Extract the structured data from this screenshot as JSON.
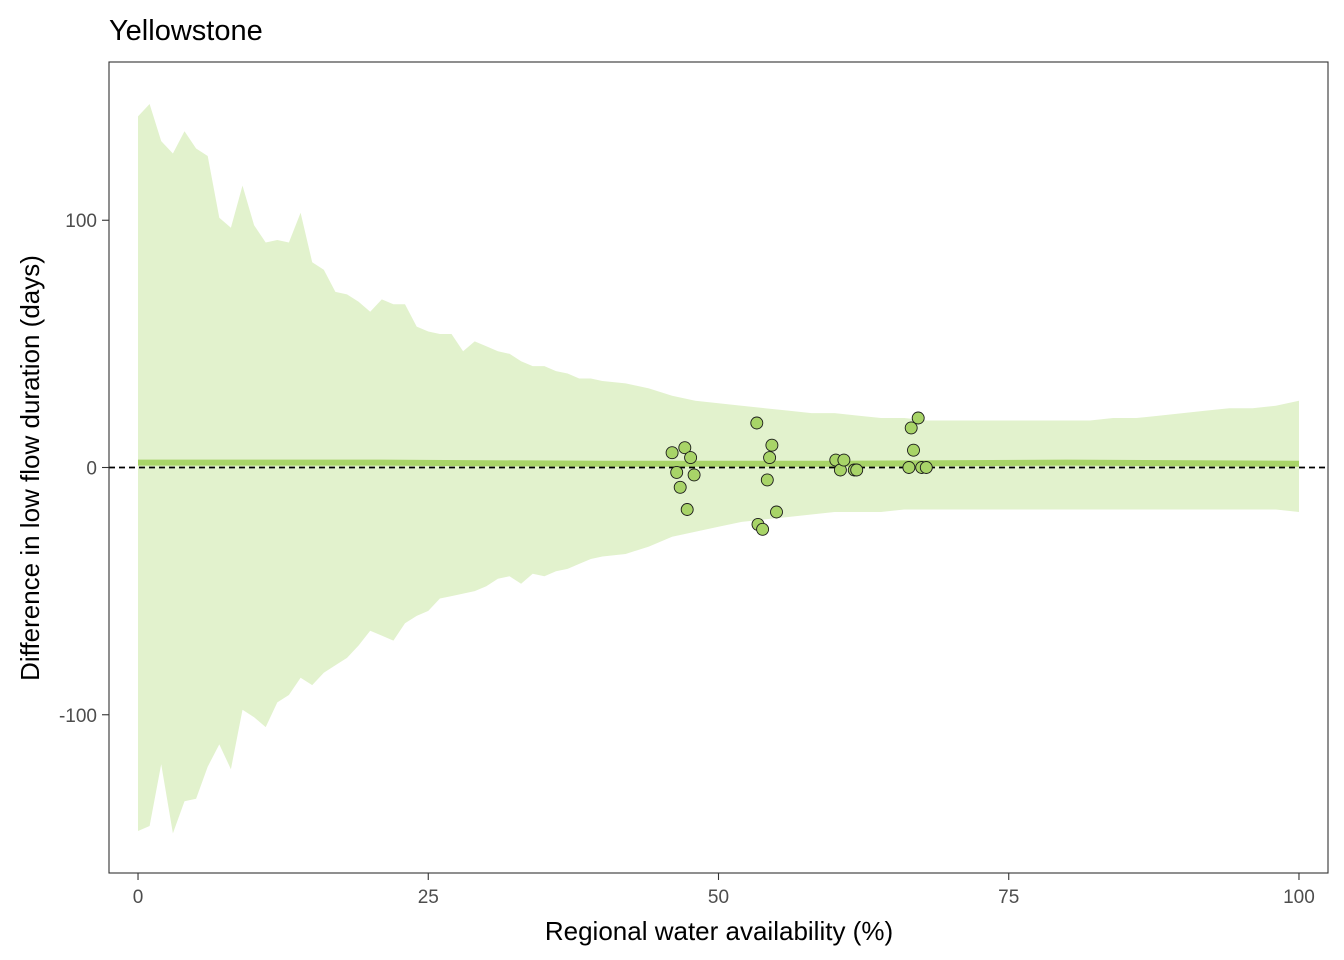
{
  "chart_data": {
    "type": "scatter",
    "title": "Yellowstone",
    "xlabel": "Regional water availability (%)",
    "ylabel": "Difference in low flow duration (days)",
    "xlim": [
      -2.5,
      102.5
    ],
    "ylim": [
      -164,
      164
    ],
    "xticks": [
      0,
      25,
      50,
      75,
      100
    ],
    "xtick_labels": [
      "0",
      "25",
      "50",
      "75",
      "100"
    ],
    "yticks": [
      -100,
      0,
      100
    ],
    "ytick_labels": [
      "-100",
      "0",
      "100"
    ],
    "grid": false,
    "reference_line": {
      "y": 0,
      "style": "dashed",
      "color": "#000000"
    },
    "colors": {
      "band": "#e2f2cd",
      "trend": "#a8d468",
      "points": "#a8d468",
      "point_outline": "#1a1a1a"
    },
    "band": {
      "x": [
        0,
        1,
        2,
        3,
        4,
        5,
        6,
        7,
        8,
        9,
        10,
        11,
        12,
        13,
        14,
        15,
        16,
        17,
        18,
        19,
        20,
        21,
        22,
        23,
        24,
        25,
        26,
        27,
        28,
        29,
        30,
        31,
        32,
        33,
        34,
        35,
        36,
        37,
        38,
        39,
        40,
        42,
        44,
        46,
        48,
        50,
        52,
        54,
        56,
        58,
        60,
        62,
        64,
        66,
        68,
        70,
        72,
        74,
        76,
        78,
        80,
        82,
        84,
        86,
        88,
        90,
        92,
        94,
        96,
        98,
        100
      ],
      "upper": [
        142,
        147,
        132,
        127,
        136,
        129,
        126,
        101,
        97,
        114,
        98,
        91,
        92,
        91,
        103,
        83,
        80,
        71,
        70,
        67,
        63,
        68,
        66,
        66,
        57,
        55,
        54,
        54,
        47,
        51,
        49,
        47,
        46,
        43,
        41,
        41,
        39,
        38,
        36,
        36,
        35,
        34,
        32,
        29,
        27,
        26,
        25,
        24,
        23,
        22,
        22,
        21,
        20,
        20,
        19,
        19,
        19,
        19,
        19,
        19,
        19,
        19,
        20,
        20,
        21,
        22,
        23,
        24,
        24,
        25,
        27
      ],
      "lower": [
        -147,
        -145,
        -120,
        -148,
        -135,
        -134,
        -121,
        -112,
        -122,
        -98,
        -101,
        -105,
        -95,
        -92,
        -85,
        -88,
        -83,
        -80,
        -77,
        -72,
        -66,
        -68,
        -70,
        -63,
        -60,
        -58,
        -53,
        -52,
        -51,
        -50,
        -48,
        -45,
        -44,
        -47,
        -43,
        -44,
        -42,
        -41,
        -39,
        -37,
        -36,
        -35,
        -32,
        -28,
        -26,
        -24,
        -22,
        -21,
        -20,
        -19,
        -18,
        -18,
        -18,
        -17,
        -17,
        -17,
        -17,
        -17,
        -17,
        -17,
        -17,
        -17,
        -17,
        -17,
        -17,
        -17,
        -17,
        -17,
        -17,
        -17,
        -18
      ]
    },
    "trend": {
      "x": [
        0,
        20,
        40,
        60,
        80,
        100
      ],
      "y": [
        2,
        2,
        1.5,
        1.5,
        2,
        1.5
      ]
    },
    "points": {
      "x": [
        46.0,
        46.4,
        46.7,
        47.1,
        47.3,
        47.6,
        47.9,
        53.3,
        53.4,
        53.8,
        54.2,
        54.4,
        54.6,
        55.0,
        60.1,
        60.5,
        60.8,
        61.7,
        61.9,
        66.4,
        66.6,
        66.8,
        67.2,
        67.5,
        67.9
      ],
      "y": [
        6,
        -2,
        -8,
        8,
        -17,
        4,
        -3,
        18,
        -23,
        -25,
        -5,
        4,
        9,
        -18,
        3,
        -1,
        3,
        -1,
        -1,
        0,
        16,
        7,
        20,
        0,
        0
      ]
    }
  }
}
